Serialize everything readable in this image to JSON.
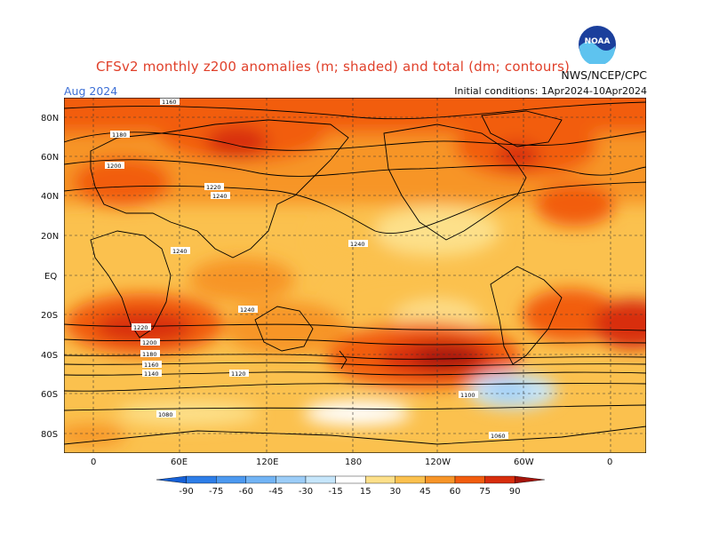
{
  "header": {
    "title": "CFSv2 monthly z200 anomalies (m; shaded) and total (dm; contours)",
    "month": "Aug 2024",
    "initial_conditions": "Initial conditions: 1Apr2024-10Apr2024",
    "agency": "NWS/NCEP/CPC",
    "logo_text": "NOAA"
  },
  "axes": {
    "lat_labels": [
      "80N",
      "60N",
      "40N",
      "20N",
      "EQ",
      "20S",
      "40S",
      "60S",
      "80S"
    ],
    "lon_labels": [
      "0",
      "60E",
      "120E",
      "180",
      "120W",
      "60W",
      "0"
    ]
  },
  "contour_labels": [
    "1160",
    "1180",
    "1200",
    "1220",
    "1240",
    "1240",
    "1240",
    "1240",
    "1220",
    "1200",
    "1180",
    "1160",
    "1140",
    "1120",
    "1100",
    "1080",
    "1060"
  ],
  "colorbar": {
    "ticks": [
      "-90",
      "-75",
      "-60",
      "-45",
      "-30",
      "-15",
      "15",
      "30",
      "45",
      "60",
      "75",
      "90"
    ],
    "colors": [
      "#1560d6",
      "#2d7ee8",
      "#4c99f0",
      "#72b4f5",
      "#9ccdf8",
      "#c6e6fb",
      "#ffffff",
      "#fde08a",
      "#fbc14e",
      "#f79528",
      "#f25d0e",
      "#d82d0c",
      "#a5140a"
    ]
  }
}
